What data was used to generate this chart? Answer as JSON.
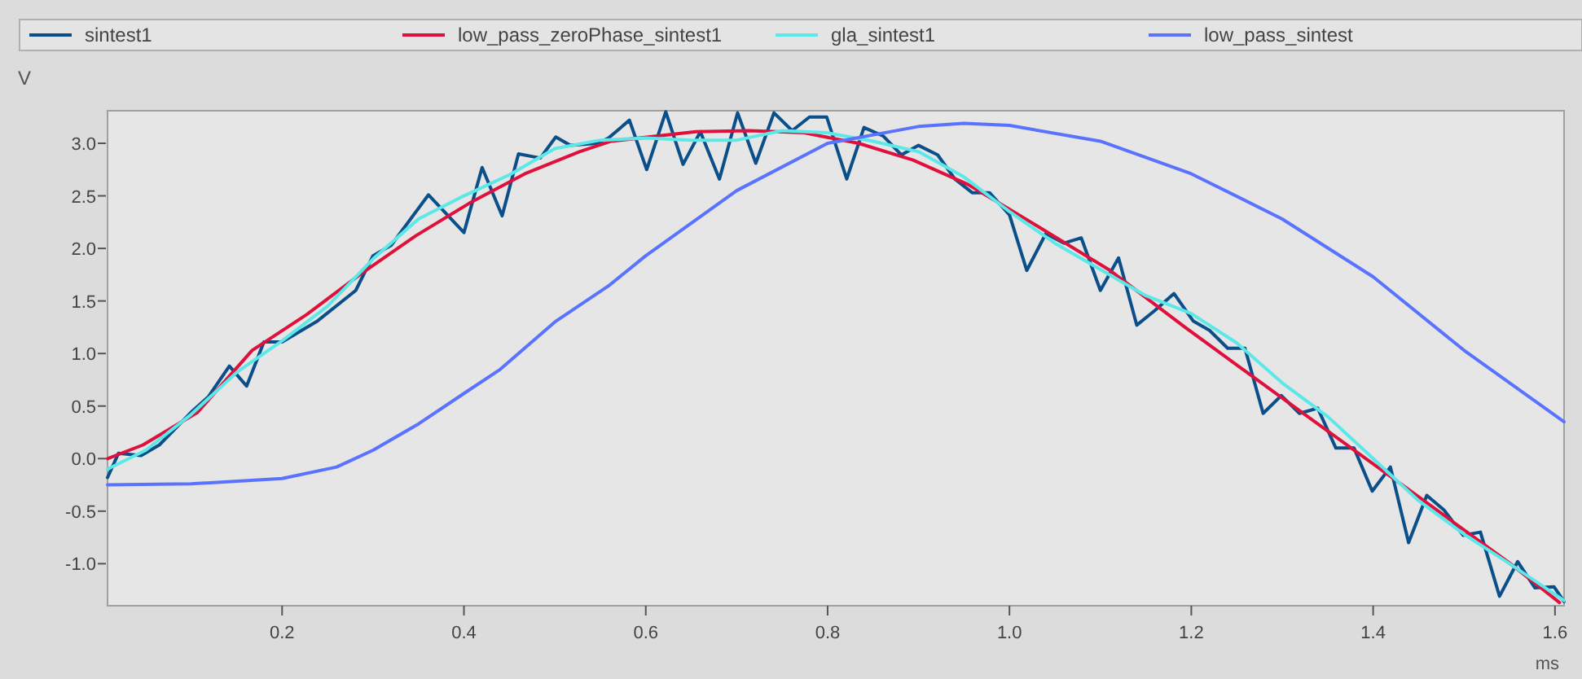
{
  "chart_data": {
    "type": "line",
    "xlabel": "ms",
    "ylabel": "V",
    "xlim": [
      0.008,
      1.61
    ],
    "ylim": [
      -1.4,
      3.31
    ],
    "xticks": [
      0.2,
      0.4,
      0.6,
      0.8,
      {
        "value": 1,
        "label": "1.0"
      },
      1.2,
      1.4,
      1.6
    ],
    "yticks": [
      {
        "value": -1,
        "label": "-1.0"
      },
      {
        "value": -0.5,
        "label": "-0.5"
      },
      {
        "value": 0,
        "label": "0.0"
      },
      {
        "value": 0.5,
        "label": "0.5"
      },
      {
        "value": 1,
        "label": "1.0"
      },
      {
        "value": 1.5,
        "label": "1.5"
      },
      {
        "value": 2,
        "label": "2.0"
      },
      {
        "value": 2.5,
        "label": "2.5"
      },
      {
        "value": 3,
        "label": "3.0"
      }
    ],
    "grid": false,
    "legend": "top",
    "marker": "none",
    "line_style": "solid",
    "series": [
      {
        "name": "sintest1",
        "color": "#0b4f8a",
        "x": [
          0.008,
          0.02,
          0.045,
          0.065,
          0.101,
          0.119,
          0.142,
          0.161,
          0.18,
          0.2,
          0.239,
          0.281,
          0.3,
          0.32,
          0.361,
          0.4,
          0.42,
          0.442,
          0.46,
          0.484,
          0.501,
          0.517,
          0.547,
          0.559,
          0.582,
          0.601,
          0.622,
          0.641,
          0.66,
          0.681,
          0.701,
          0.721,
          0.741,
          0.761,
          0.78,
          0.799,
          0.821,
          0.84,
          0.861,
          0.881,
          0.9,
          0.921,
          0.94,
          0.959,
          0.978,
          1.0,
          1.019,
          1.04,
          1.06,
          1.079,
          1.1,
          1.12,
          1.14,
          1.16,
          1.181,
          1.202,
          1.22,
          1.24,
          1.259,
          1.279,
          1.299,
          1.319,
          1.339,
          1.359,
          1.379,
          1.399,
          1.419,
          1.439,
          1.459,
          1.478,
          1.499,
          1.518,
          1.539,
          1.559,
          1.578,
          1.599,
          1.61
        ],
        "values": [
          -0.18,
          0.05,
          0.03,
          0.13,
          0.45,
          0.59,
          0.88,
          0.69,
          1.11,
          1.11,
          1.31,
          1.6,
          1.93,
          2.03,
          2.51,
          2.15,
          2.77,
          2.31,
          2.9,
          2.86,
          3.06,
          2.98,
          3.0,
          3.05,
          3.22,
          2.75,
          3.3,
          2.8,
          3.11,
          2.66,
          3.29,
          2.81,
          3.29,
          3.12,
          3.25,
          3.25,
          2.66,
          3.15,
          3.07,
          2.89,
          2.98,
          2.89,
          2.66,
          2.53,
          2.53,
          2.32,
          1.79,
          2.14,
          2.05,
          2.1,
          1.6,
          1.91,
          1.27,
          1.41,
          1.57,
          1.31,
          1.22,
          1.05,
          1.05,
          0.43,
          0.6,
          0.43,
          0.48,
          0.1,
          0.1,
          -0.31,
          -0.08,
          -0.8,
          -0.35,
          -0.49,
          -0.73,
          -0.7,
          -1.31,
          -0.98,
          -1.23,
          -1.22,
          -1.36
        ]
      },
      {
        "name": "low_pass_zeroPhase_sintest1",
        "color": "#e0103c",
        "x": [
          0.008,
          0.047,
          0.107,
          0.167,
          0.227,
          0.287,
          0.347,
          0.406,
          0.467,
          0.527,
          0.562,
          0.655,
          0.714,
          0.774,
          0.834,
          0.894,
          0.954,
          1.014,
          1.109,
          1.193,
          1.312,
          1.432,
          1.551,
          1.605
        ],
        "values": [
          0.0,
          0.13,
          0.44,
          1.03,
          1.37,
          1.76,
          2.12,
          2.43,
          2.71,
          2.92,
          3.02,
          3.11,
          3.12,
          3.1,
          3.0,
          2.84,
          2.61,
          2.3,
          1.8,
          1.25,
          0.5,
          -0.25,
          -1.0,
          -1.37
        ]
      },
      {
        "name": "gla_sintest1",
        "color": "#5ce8e8",
        "x": [
          0.008,
          0.05,
          0.1,
          0.15,
          0.2,
          0.25,
          0.3,
          0.35,
          0.4,
          0.45,
          0.5,
          0.55,
          0.6,
          0.65,
          0.7,
          0.75,
          0.8,
          0.85,
          0.9,
          0.95,
          1.0,
          1.05,
          1.1,
          1.15,
          1.2,
          1.25,
          1.3,
          1.35,
          1.4,
          1.45,
          1.5,
          1.55,
          1.61
        ],
        "values": [
          -0.1,
          0.08,
          0.42,
          0.82,
          1.12,
          1.45,
          1.9,
          2.28,
          2.5,
          2.7,
          2.95,
          3.03,
          3.05,
          3.03,
          3.03,
          3.12,
          3.1,
          3.02,
          2.92,
          2.68,
          2.35,
          2.05,
          1.8,
          1.55,
          1.38,
          1.1,
          0.72,
          0.4,
          0.0,
          -0.4,
          -0.72,
          -1.0,
          -1.35
        ]
      },
      {
        "name": "low_pass_sintest",
        "color": "#5a73ff",
        "x": [
          0.008,
          0.1,
          0.2,
          0.26,
          0.3,
          0.35,
          0.4,
          0.44,
          0.5,
          0.56,
          0.6,
          0.7,
          0.8,
          0.9,
          0.95,
          1.0,
          1.1,
          1.2,
          1.3,
          1.4,
          1.5,
          1.61
        ],
        "values": [
          -0.25,
          -0.24,
          -0.19,
          -0.08,
          0.08,
          0.33,
          0.62,
          0.85,
          1.3,
          1.65,
          1.93,
          2.55,
          3.0,
          3.16,
          3.19,
          3.17,
          3.02,
          2.71,
          2.28,
          1.73,
          1.03,
          0.35
        ]
      }
    ]
  }
}
